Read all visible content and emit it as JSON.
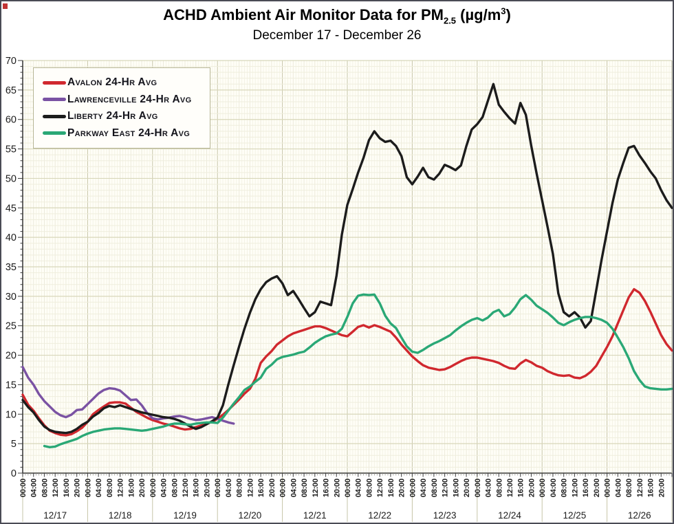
{
  "page": {
    "title_prefix": "ACHD Ambient Air Monitor Data for PM",
    "title_subscript": "2.5",
    "title_unit_prefix": " (µg/m",
    "title_superscript": "3",
    "title_unit_suffix": ")",
    "subtitle": "December 17 - December 26"
  },
  "chart_data": {
    "type": "line",
    "title": "ACHD Ambient Air Monitor Data for PM2.5 (µg/m3)",
    "subtitle": "December 17 - December 26",
    "ylabel": "",
    "xlabel": "",
    "ylim": [
      0,
      70
    ],
    "ytick_step": 5,
    "grid": true,
    "legend_position": "top-left",
    "x_days": [
      "12/17",
      "12/18",
      "12/19",
      "12/20",
      "12/21",
      "12/22",
      "12/23",
      "12/24",
      "12/25",
      "12/26"
    ],
    "x_time_labels": [
      "00:00",
      "04:00",
      "08:00",
      "12:00",
      "16:00",
      "20:00"
    ],
    "hours_total": 240,
    "sample_step_hours": 2,
    "series": [
      {
        "name": "Avalon 24-Hr Avg",
        "color": "#d0282e",
        "start_hour": 0,
        "values": [
          13.3,
          11.6,
          10.6,
          9.3,
          8.1,
          7.2,
          6.8,
          6.5,
          6.4,
          6.6,
          7.1,
          7.7,
          8.7,
          10.0,
          10.7,
          11.3,
          11.9,
          12.0,
          12.0,
          11.8,
          11.1,
          10.4,
          9.9,
          9.4,
          9.0,
          8.7,
          8.4,
          8.2,
          7.9,
          7.6,
          7.4,
          7.5,
          7.8,
          8.1,
          8.4,
          8.7,
          9.2,
          9.9,
          10.7,
          11.6,
          12.5,
          13.5,
          14.3,
          16.0,
          18.7,
          19.8,
          20.7,
          21.8,
          22.5,
          23.2,
          23.7,
          24.0,
          24.3,
          24.6,
          24.9,
          24.9,
          24.6,
          24.2,
          23.8,
          23.4,
          23.2,
          24.0,
          24.8,
          25.1,
          24.7,
          25.1,
          24.8,
          24.4,
          24.0,
          23.0,
          21.8,
          20.8,
          19.8,
          19.0,
          18.3,
          17.9,
          17.7,
          17.5,
          17.6,
          18.0,
          18.5,
          19.0,
          19.4,
          19.6,
          19.6,
          19.4,
          19.2,
          19.0,
          18.7,
          18.2,
          17.8,
          17.7,
          18.6,
          19.2,
          18.8,
          18.2,
          17.9,
          17.3,
          16.9,
          16.6,
          16.5,
          16.6,
          16.2,
          16.1,
          16.5,
          17.2,
          18.2,
          19.8,
          21.4,
          23.2,
          25.4,
          27.6,
          29.8,
          31.2,
          30.6,
          29.2,
          27.4,
          25.4,
          23.4,
          21.9,
          20.8
        ]
      },
      {
        "name": "Lawrenceville 24-Hr Avg",
        "color": "#7a52a3",
        "start_hour": 0,
        "values": [
          18.0,
          16.2,
          15.0,
          13.4,
          12.2,
          11.3,
          10.4,
          9.8,
          9.5,
          9.9,
          10.7,
          10.8,
          11.7,
          12.6,
          13.5,
          14.1,
          14.4,
          14.3,
          14.0,
          13.2,
          12.4,
          12.5,
          11.5,
          10.2,
          9.3,
          9.1,
          9.3,
          9.4,
          9.6,
          9.7,
          9.5,
          9.2,
          9.0,
          9.1,
          9.3,
          9.5,
          9.2,
          8.9,
          8.6,
          8.4
        ]
      },
      {
        "name": "Liberty 24-Hr Avg",
        "color": "#1c1c1c",
        "start_hour": 0,
        "values": [
          12.4,
          11.2,
          10.3,
          9.0,
          7.9,
          7.3,
          7.0,
          6.9,
          6.8,
          7.0,
          7.5,
          8.2,
          8.7,
          9.6,
          10.2,
          11.0,
          11.4,
          11.2,
          11.5,
          11.2,
          10.9,
          10.6,
          10.3,
          10.1,
          9.9,
          9.7,
          9.5,
          9.4,
          9.2,
          8.9,
          8.4,
          7.9,
          7.5,
          7.8,
          8.3,
          8.8,
          9.4,
          11.5,
          15.0,
          18.3,
          21.5,
          24.5,
          27.2,
          29.5,
          31.2,
          32.4,
          33.0,
          33.4,
          32.2,
          30.2,
          30.9,
          29.5,
          28.0,
          26.6,
          27.3,
          29.1,
          28.8,
          28.5,
          33.5,
          40.5,
          45.5,
          48.2,
          51.0,
          53.5,
          56.5,
          58.0,
          56.8,
          56.2,
          56.4,
          55.5,
          53.8,
          50.2,
          49.0,
          50.3,
          51.8,
          50.2,
          49.8,
          50.8,
          52.3,
          51.9,
          51.4,
          52.2,
          55.5,
          58.3,
          59.2,
          60.4,
          63.2,
          66.0,
          62.5,
          61.3,
          60.2,
          59.3,
          62.8,
          60.8,
          55.5,
          50.8,
          46.3,
          41.8,
          37.2,
          30.5,
          27.3,
          26.6,
          27.3,
          26.4,
          24.7,
          25.8,
          31.0,
          36.2,
          41.0,
          45.8,
          49.8,
          52.6,
          55.2,
          55.5,
          53.9,
          52.6,
          51.2,
          50.0,
          48.0,
          46.3,
          45.0
        ]
      },
      {
        "name": "Parkway East 24-Hr Avg",
        "color": "#2aa876",
        "start_hour": 8,
        "values": [
          4.6,
          4.4,
          4.5,
          4.9,
          5.2,
          5.5,
          5.8,
          6.3,
          6.7,
          7.0,
          7.2,
          7.4,
          7.5,
          7.6,
          7.6,
          7.5,
          7.4,
          7.3,
          7.2,
          7.3,
          7.5,
          7.7,
          7.9,
          8.2,
          8.4,
          8.4,
          8.3,
          8.2,
          8.4,
          8.5,
          8.6,
          8.6,
          8.5,
          9.4,
          10.6,
          11.8,
          12.9,
          14.1,
          14.7,
          15.5,
          16.2,
          17.7,
          18.4,
          19.3,
          19.7,
          19.9,
          20.1,
          20.4,
          20.6,
          21.3,
          22.1,
          22.7,
          23.2,
          23.5,
          23.7,
          24.5,
          26.5,
          28.8,
          30.1,
          30.3,
          30.2,
          30.3,
          28.8,
          26.7,
          25.4,
          24.6,
          23.0,
          21.5,
          20.6,
          20.4,
          20.9,
          21.5,
          22.0,
          22.4,
          22.9,
          23.4,
          24.2,
          24.9,
          25.5,
          26.0,
          26.3,
          25.9,
          26.4,
          27.3,
          27.7,
          26.6,
          27.0,
          28.1,
          29.5,
          30.2,
          29.4,
          28.4,
          27.8,
          27.2,
          26.4,
          25.5,
          25.1,
          25.6,
          26.0,
          26.3,
          26.5,
          26.5,
          26.3,
          26.0,
          25.5,
          24.5,
          23.0,
          21.4,
          19.5,
          17.3,
          15.8,
          14.7,
          14.4,
          14.3,
          14.2,
          14.2,
          14.3
        ]
      }
    ]
  }
}
